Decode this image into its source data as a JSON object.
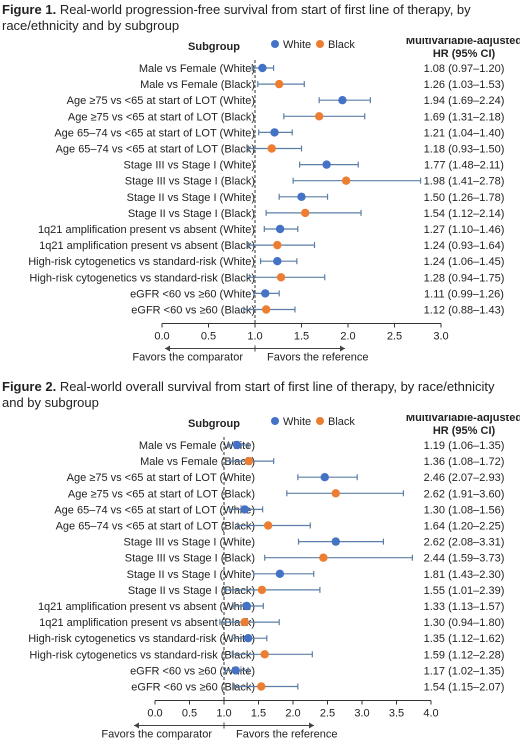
{
  "colors": {
    "white": "#4472C4",
    "black": "#ED7D31",
    "ci_line": "#5B7FA6",
    "axis": "#333333",
    "ref_line": "#333333"
  },
  "chart_data": [
    {
      "type": "forest",
      "figure_label": "Figure 1.",
      "title": "Real-world progression-free survival from start of first line of therapy, by race/ethnicity and by subgroup",
      "column_subgroup": "Subgroup",
      "column_hr_line1": "Multivariable-adjusted",
      "column_hr_line2": "HR (95% CI)",
      "legend": [
        {
          "name": "White",
          "color": "#4472C4"
        },
        {
          "name": "Black",
          "color": "#ED7D31"
        }
      ],
      "xlim": [
        0,
        3
      ],
      "ticks": [
        "0.0",
        "0.5",
        "1.0",
        "1.5",
        "2.0",
        "2.5",
        "3.0"
      ],
      "tick_values": [
        0,
        0.5,
        1.0,
        1.5,
        2.0,
        2.5,
        3.0
      ],
      "reference_line": 1,
      "favors_left": "Favors the comparator",
      "favors_right": "Favors the reference",
      "rows": [
        {
          "label": "Male vs Female (White)",
          "group": "white",
          "hr": 1.08,
          "lo": 0.97,
          "hi": 1.2,
          "text": "1.08 (0.97–1.20)"
        },
        {
          "label": "Male vs Female (Black)",
          "group": "black",
          "hr": 1.26,
          "lo": 1.03,
          "hi": 1.53,
          "text": "1.26 (1.03–1.53)"
        },
        {
          "label": "Age ≥75 vs <65 at start of LOT (White)",
          "group": "white",
          "hr": 1.94,
          "lo": 1.69,
          "hi": 2.24,
          "text": "1.94 (1.69–2.24)"
        },
        {
          "label": "Age ≥75 vs <65 at start of LOT (Black)",
          "group": "black",
          "hr": 1.69,
          "lo": 1.31,
          "hi": 2.18,
          "text": "1.69 (1.31–2.18)"
        },
        {
          "label": "Age 65–74 vs <65 at start of LOT (White)",
          "group": "white",
          "hr": 1.21,
          "lo": 1.04,
          "hi": 1.4,
          "text": "1.21 (1.04–1.40)"
        },
        {
          "label": "Age 65–74 vs <65 at start of LOT (Black)",
          "group": "black",
          "hr": 1.18,
          "lo": 0.93,
          "hi": 1.5,
          "text": "1.18 (0.93–1.50)"
        },
        {
          "label": "Stage III vs Stage I (White)",
          "group": "white",
          "hr": 1.77,
          "lo": 1.48,
          "hi": 2.11,
          "text": "1.77 (1.48–2.11)"
        },
        {
          "label": "Stage III vs Stage I (Black)",
          "group": "black",
          "hr": 1.98,
          "lo": 1.41,
          "hi": 2.78,
          "text": "1.98 (1.41–2.78)"
        },
        {
          "label": "Stage II vs Stage I (White)",
          "group": "white",
          "hr": 1.5,
          "lo": 1.26,
          "hi": 1.78,
          "text": "1.50 (1.26–1.78)"
        },
        {
          "label": "Stage II vs Stage I (Black)",
          "group": "black",
          "hr": 1.54,
          "lo": 1.12,
          "hi": 2.14,
          "text": "1.54 (1.12–2.14)"
        },
        {
          "label": "1q21 amplification present vs absent (White)",
          "group": "white",
          "hr": 1.27,
          "lo": 1.1,
          "hi": 1.46,
          "text": "1.27 (1.10–1.46)"
        },
        {
          "label": "1q21 amplification present vs absent (Black)",
          "group": "black",
          "hr": 1.24,
          "lo": 0.93,
          "hi": 1.64,
          "text": "1.24 (0.93–1.64)"
        },
        {
          "label": "High-risk cytogenetics vs standard-risk (White)",
          "group": "white",
          "hr": 1.24,
          "lo": 1.06,
          "hi": 1.45,
          "text": "1.24 (1.06–1.45)"
        },
        {
          "label": "High-risk cytogenetics vs standard-risk (Black)",
          "group": "black",
          "hr": 1.28,
          "lo": 0.94,
          "hi": 1.75,
          "text": "1.28 (0.94–1.75)"
        },
        {
          "label": "eGFR <60 vs ≥60 (White)",
          "group": "white",
          "hr": 1.11,
          "lo": 0.99,
          "hi": 1.26,
          "text": "1.11 (0.99–1.26)"
        },
        {
          "label": "eGFR <60 vs ≥60 (Black)",
          "group": "black",
          "hr": 1.12,
          "lo": 0.88,
          "hi": 1.43,
          "text": "1.12 (0.88–1.43)"
        }
      ]
    },
    {
      "type": "forest",
      "figure_label": "Figure 2.",
      "title": "Real-world overall survival from start of first line of therapy, by race/ethnicity and by subgroup",
      "column_subgroup": "Subgroup",
      "column_hr_line1": "Multivariable-adjusted",
      "column_hr_line2": "HR (95% CI)",
      "legend": [
        {
          "name": "White",
          "color": "#4472C4"
        },
        {
          "name": "Black",
          "color": "#ED7D31"
        }
      ],
      "xlim": [
        0,
        4
      ],
      "ticks": [
        "0.0",
        "0.5",
        "1.0",
        "1.5",
        "2.0",
        "2.5",
        "3.0",
        "3.5",
        "4.0"
      ],
      "tick_values": [
        0,
        0.5,
        1.0,
        1.5,
        2.0,
        2.5,
        3.0,
        3.5,
        4.0
      ],
      "reference_line": 1,
      "favors_left": "Favors the comparator",
      "favors_right": "Favors the reference",
      "rows": [
        {
          "label": "Male vs Female (White)",
          "group": "white",
          "hr": 1.19,
          "lo": 1.06,
          "hi": 1.35,
          "text": "1.19 (1.06–1.35)"
        },
        {
          "label": "Male vs Female (Black)",
          "group": "black",
          "hr": 1.36,
          "lo": 1.08,
          "hi": 1.72,
          "text": "1.36 (1.08–1.72)"
        },
        {
          "label": "Age ≥75 vs <65 at start of LOT (White)",
          "group": "white",
          "hr": 2.46,
          "lo": 2.07,
          "hi": 2.93,
          "text": "2.46 (2.07–2.93)"
        },
        {
          "label": "Age ≥75 vs <65 at start of LOT (Black)",
          "group": "black",
          "hr": 2.62,
          "lo": 1.91,
          "hi": 3.6,
          "text": "2.62 (1.91–3.60)"
        },
        {
          "label": "Age 65–74 vs <65 at start of LOT (White)",
          "group": "white",
          "hr": 1.3,
          "lo": 1.08,
          "hi": 1.56,
          "text": "1.30 (1.08–1.56)"
        },
        {
          "label": "Age 65–74 vs <65 at start of LOT (Black)",
          "group": "black",
          "hr": 1.64,
          "lo": 1.2,
          "hi": 2.25,
          "text": "1.64 (1.20–2.25)"
        },
        {
          "label": "Stage III vs Stage I (White)",
          "group": "white",
          "hr": 2.62,
          "lo": 2.08,
          "hi": 3.31,
          "text": "2.62 (2.08–3.31)"
        },
        {
          "label": "Stage III vs Stage I (Black)",
          "group": "black",
          "hr": 2.44,
          "lo": 1.59,
          "hi": 3.73,
          "text": "2.44 (1.59–3.73)"
        },
        {
          "label": "Stage II vs Stage I (White)",
          "group": "white",
          "hr": 1.81,
          "lo": 1.43,
          "hi": 2.3,
          "text": "1.81 (1.43–2.30)"
        },
        {
          "label": "Stage II vs Stage I (Black)",
          "group": "black",
          "hr": 1.55,
          "lo": 1.01,
          "hi": 2.39,
          "text": "1.55 (1.01–2.39)"
        },
        {
          "label": "1q21 amplification present vs absent (White)",
          "group": "white",
          "hr": 1.33,
          "lo": 1.13,
          "hi": 1.57,
          "text": "1.33 (1.13–1.57)"
        },
        {
          "label": "1q21 amplification present vs absent (Black)",
          "group": "black",
          "hr": 1.3,
          "lo": 0.94,
          "hi": 1.8,
          "text": "1.30 (0.94–1.80)"
        },
        {
          "label": "High-risk cytogenetics vs standard-risk (White)",
          "group": "white",
          "hr": 1.35,
          "lo": 1.12,
          "hi": 1.62,
          "text": "1.35 (1.12–1.62)"
        },
        {
          "label": "High-risk cytogenetics vs standard-risk (Black)",
          "group": "black",
          "hr": 1.59,
          "lo": 1.12,
          "hi": 2.28,
          "text": "1.59 (1.12–2.28)"
        },
        {
          "label": "eGFR <60 vs ≥60 (White)",
          "group": "white",
          "hr": 1.17,
          "lo": 1.02,
          "hi": 1.35,
          "text": "1.17 (1.02–1.35)"
        },
        {
          "label": "eGFR <60 vs ≥60 (Black)",
          "group": "black",
          "hr": 1.54,
          "lo": 1.15,
          "hi": 2.07,
          "text": "1.54 (1.15–2.07)"
        }
      ]
    }
  ]
}
